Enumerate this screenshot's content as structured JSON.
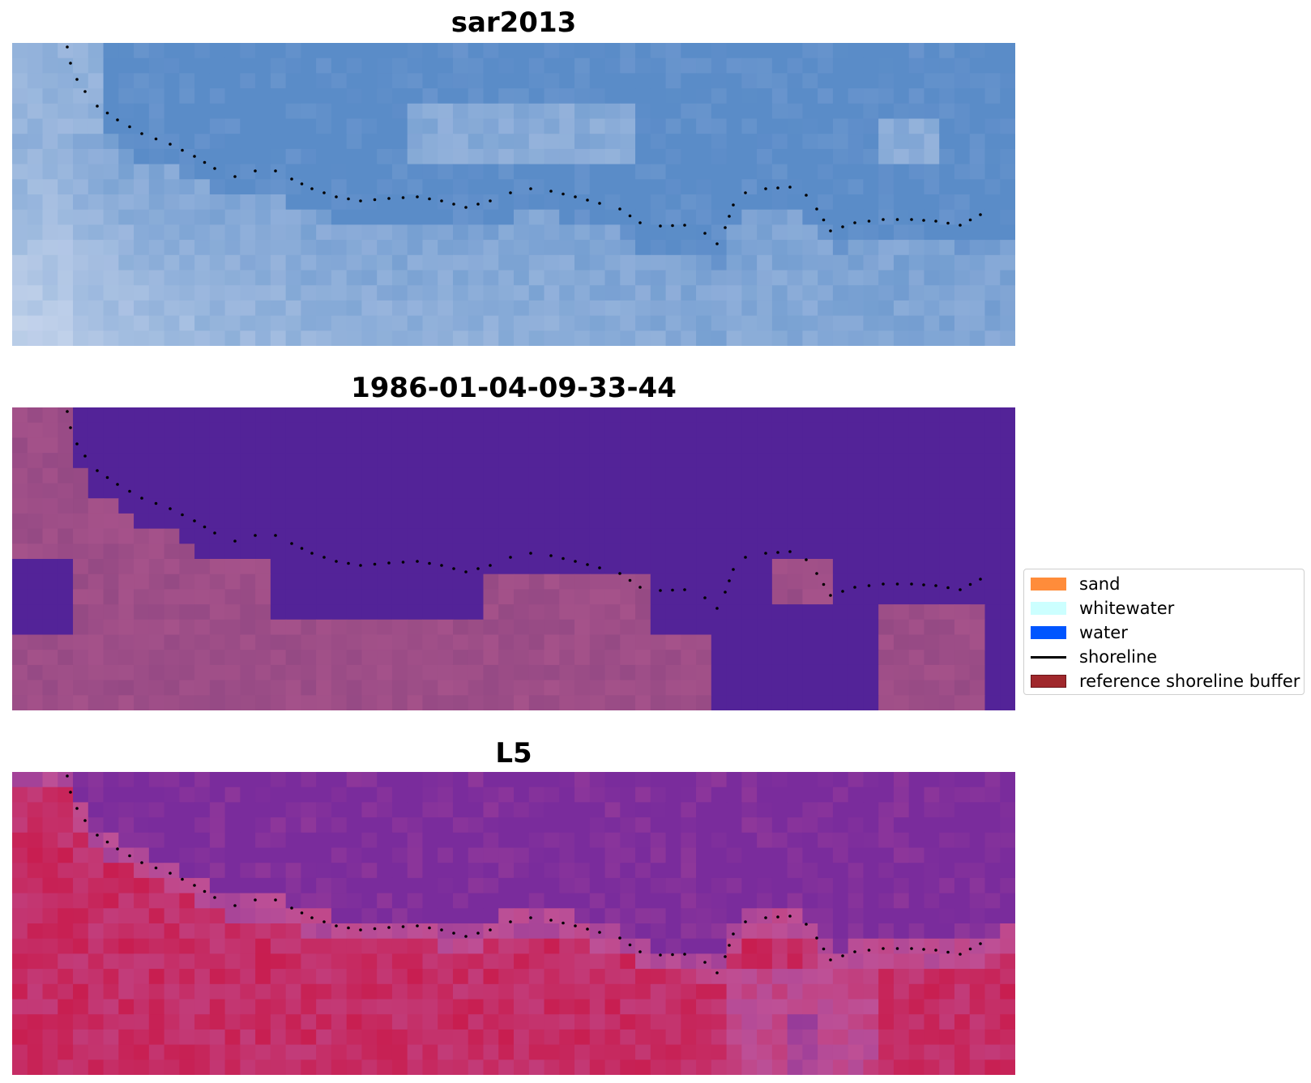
{
  "panels": [
    {
      "title": "sar2013",
      "image": "blue-grey sar composite"
    },
    {
      "title": "1986-01-04-09-33-44",
      "image": "classified land/water map"
    },
    {
      "title": "L5",
      "image": "magenta-red false color composite"
    }
  ],
  "legend": {
    "items": [
      {
        "label": "sand",
        "color": "#ff8c3a",
        "kind": "patch"
      },
      {
        "label": "whitewater",
        "color": "#ccffff",
        "kind": "patch"
      },
      {
        "label": "water",
        "color": "#0055ff",
        "kind": "patch"
      },
      {
        "label": "shoreline",
        "color": "#000000",
        "kind": "line"
      },
      {
        "label": "reference shoreline buffer",
        "color": "#a0282c",
        "kind": "patch"
      }
    ]
  },
  "colors": {
    "sar_base": "#5f93c9",
    "class_water": "#53239a",
    "class_land": "#9a4c86",
    "l5_water": "#7b2c9c",
    "l5_land": "#c6285a",
    "shoreline": "#000000"
  }
}
